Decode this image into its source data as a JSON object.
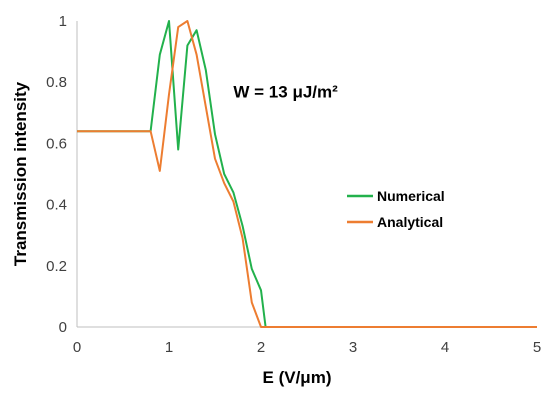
{
  "chart_data": {
    "type": "line",
    "title": "",
    "xlabel": "E (V/μm)",
    "ylabel": "Transmission intensity",
    "xlim": [
      0,
      5
    ],
    "ylim": [
      0,
      1
    ],
    "xticks": [
      "0",
      "1",
      "2",
      "3",
      "4",
      "5"
    ],
    "yticks": [
      "0",
      "0.2",
      "0.4",
      "0.6",
      "0.8",
      "1"
    ],
    "grid": false,
    "legend_position": "right",
    "annotation": {
      "text": "W = 13 μJ/m²",
      "x": 1.7,
      "y": 0.75
    },
    "series": [
      {
        "name": "Numerical",
        "color": "#22b14c",
        "x": [
          0,
          0.8,
          0.9,
          1.0,
          1.1,
          1.2,
          1.3,
          1.4,
          1.5,
          1.6,
          1.7,
          1.8,
          1.9,
          2.0,
          2.05,
          5.0
        ],
        "y": [
          0.64,
          0.64,
          0.89,
          1.0,
          0.58,
          0.92,
          0.97,
          0.84,
          0.63,
          0.5,
          0.44,
          0.33,
          0.19,
          0.12,
          0.0,
          0.0
        ]
      },
      {
        "name": "Analytical",
        "color": "#ed7d31",
        "x": [
          0,
          0.8,
          0.9,
          1.0,
          1.1,
          1.2,
          1.3,
          1.4,
          1.5,
          1.6,
          1.7,
          1.8,
          1.9,
          2.0,
          5.0
        ],
        "y": [
          0.64,
          0.64,
          0.51,
          0.76,
          0.98,
          1.0,
          0.89,
          0.72,
          0.55,
          0.47,
          0.41,
          0.29,
          0.08,
          0.0,
          0.0
        ]
      }
    ]
  }
}
